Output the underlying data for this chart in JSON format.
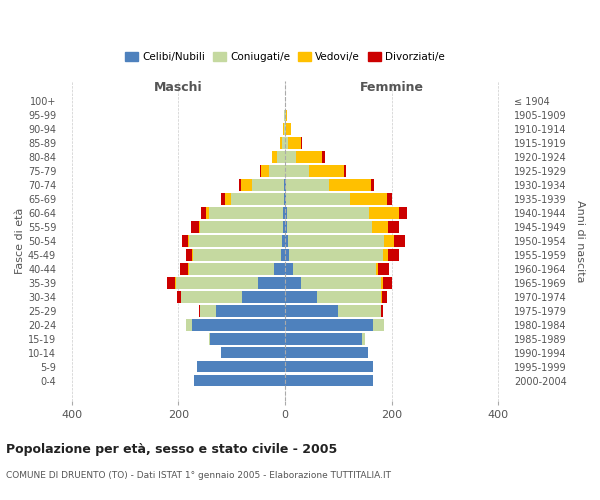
{
  "age_groups_bottom_to_top": [
    "0-4",
    "5-9",
    "10-14",
    "15-19",
    "20-24",
    "25-29",
    "30-34",
    "35-39",
    "40-44",
    "45-49",
    "50-54",
    "55-59",
    "60-64",
    "65-69",
    "70-74",
    "75-79",
    "80-84",
    "85-89",
    "90-94",
    "95-99",
    "100+"
  ],
  "birth_years_bottom_to_top": [
    "2000-2004",
    "1995-1999",
    "1990-1994",
    "1985-1989",
    "1980-1984",
    "1975-1979",
    "1970-1974",
    "1965-1969",
    "1960-1964",
    "1955-1959",
    "1950-1954",
    "1945-1949",
    "1940-1944",
    "1935-1939",
    "1930-1934",
    "1925-1929",
    "1920-1924",
    "1915-1919",
    "1910-1914",
    "1905-1909",
    "≤ 1904"
  ],
  "males": {
    "celibe": [
      170,
      165,
      120,
      140,
      175,
      130,
      80,
      50,
      20,
      8,
      5,
      4,
      3,
      2,
      2,
      0,
      0,
      0,
      0,
      0,
      0
    ],
    "coniugato": [
      0,
      0,
      0,
      2,
      10,
      30,
      115,
      155,
      160,
      165,
      175,
      155,
      140,
      100,
      60,
      30,
      15,
      5,
      2,
      1,
      0
    ],
    "vedovo": [
      0,
      0,
      0,
      0,
      0,
      0,
      0,
      1,
      1,
      1,
      2,
      3,
      5,
      10,
      20,
      15,
      10,
      5,
      1,
      0,
      0
    ],
    "divorziato": [
      0,
      0,
      0,
      0,
      0,
      2,
      8,
      15,
      15,
      12,
      12,
      15,
      10,
      8,
      5,
      2,
      0,
      0,
      0,
      0,
      0
    ]
  },
  "females": {
    "nubile": [
      165,
      165,
      155,
      145,
      165,
      100,
      60,
      30,
      15,
      8,
      5,
      4,
      3,
      2,
      2,
      0,
      0,
      0,
      0,
      0,
      0
    ],
    "coniugata": [
      0,
      0,
      0,
      5,
      20,
      80,
      120,
      150,
      155,
      175,
      180,
      160,
      155,
      120,
      80,
      45,
      20,
      5,
      2,
      1,
      0
    ],
    "vedova": [
      0,
      0,
      0,
      0,
      0,
      1,
      2,
      3,
      5,
      10,
      20,
      30,
      55,
      70,
      80,
      65,
      50,
      25,
      10,
      2,
      0
    ],
    "divorziata": [
      0,
      0,
      0,
      0,
      0,
      3,
      10,
      18,
      20,
      20,
      20,
      20,
      15,
      8,
      5,
      5,
      5,
      2,
      0,
      0,
      0
    ]
  },
  "colors": {
    "celibe": "#4e81bd",
    "coniugato": "#c5d9a0",
    "vedovo": "#ffc000",
    "divorziato": "#cc0000"
  },
  "xlim": [
    -420,
    420
  ],
  "xticks": [
    -400,
    -200,
    0,
    200,
    400
  ],
  "xticklabels": [
    "400",
    "200",
    "0",
    "200",
    "400"
  ],
  "title": "Popolazione per età, sesso e stato civile - 2005",
  "subtitle": "COMUNE DI DRUENTO (TO) - Dati ISTAT 1° gennaio 2005 - Elaborazione TUTTITALIA.IT",
  "ylabel_left": "Fasce di età",
  "ylabel_right": "Anni di nascita",
  "label_maschi": "Maschi",
  "label_femmine": "Femmine",
  "legend_labels": [
    "Celibi/Nubili",
    "Coniugati/e",
    "Vedovi/e",
    "Divorziati/e"
  ],
  "background_color": "#ffffff",
  "grid_color": "#cccccc",
  "bar_height": 0.82
}
